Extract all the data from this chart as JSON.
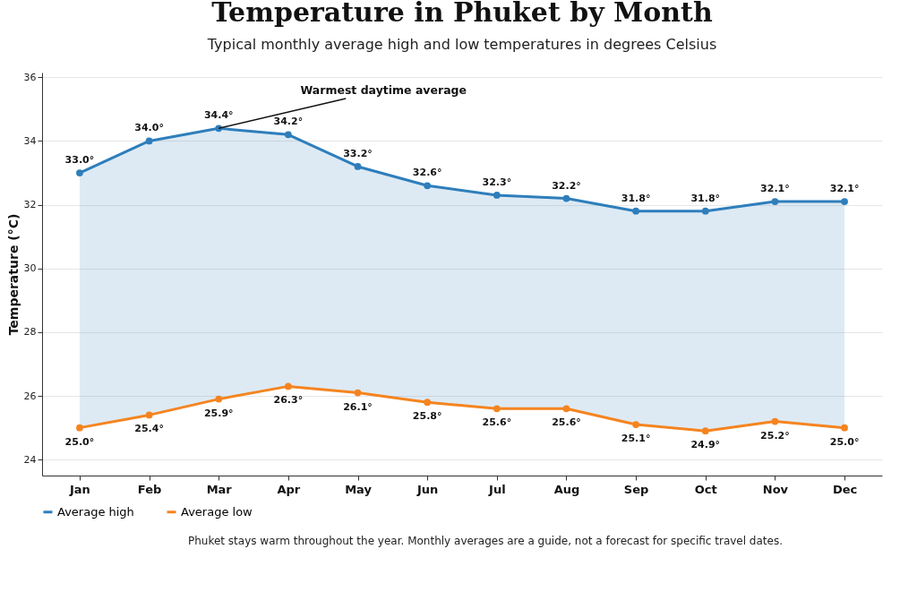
{
  "chart_data": {
    "type": "line",
    "title": "Temperature in Phuket by Month",
    "subtitle": "Typical monthly average high and low temperatures in degrees Celsius",
    "ylabel": "Temperature (°C)",
    "categories": [
      "Jan",
      "Feb",
      "Mar",
      "Apr",
      "May",
      "Jun",
      "Jul",
      "Aug",
      "Sep",
      "Oct",
      "Nov",
      "Dec"
    ],
    "series": [
      {
        "name": "Average high",
        "color": "#2e7ebb",
        "values": [
          33.0,
          34.0,
          34.4,
          34.2,
          33.2,
          32.6,
          32.3,
          32.2,
          31.8,
          31.8,
          32.1,
          32.1
        ],
        "lower": [
          25.0,
          25.4,
          25.9,
          26.3,
          26.1,
          25.8,
          25.6,
          25.6,
          25.1,
          24.9,
          25.2,
          25.0
        ],
        "upper": [
          33.0,
          34.0,
          34.4,
          34.2,
          33.2,
          32.6,
          32.3,
          32.2,
          31.8,
          31.8,
          32.1,
          32.1
        ],
        "value_labels": [
          "33.0°",
          "34.0°",
          "34.4°",
          "34.2°",
          "33.2°",
          "32.6°",
          "32.3°",
          "32.2°",
          "31.8°",
          "31.8°",
          "32.1°",
          "32.1°"
        ]
      },
      {
        "name": "Average low",
        "color": "#f5841f",
        "values": [
          25.0,
          25.4,
          25.9,
          26.3,
          26.1,
          25.8,
          25.6,
          25.6,
          25.1,
          24.9,
          25.2,
          25.0
        ],
        "value_labels": [
          "25.0°",
          "25.4°",
          "25.9°",
          "26.3°",
          "26.1°",
          "25.8°",
          "25.6°",
          "25.6°",
          "25.1°",
          "24.9°",
          "25.2°",
          "25.0°"
        ]
      }
    ],
    "ylim": [
      23.5,
      36.15
    ],
    "yticks": [
      24,
      26,
      28,
      30,
      32,
      34,
      36
    ],
    "grid": "y",
    "legend": "bottom",
    "marker": "circle",
    "line_style": "solid",
    "annotations": [
      {
        "text": "Warmest daytime average",
        "x": "Mar",
        "y": 34.4
      },
      "Phuket stays warm throughout the year. Monthly averages are a guide, not a forecast for specific travel dates."
    ]
  }
}
